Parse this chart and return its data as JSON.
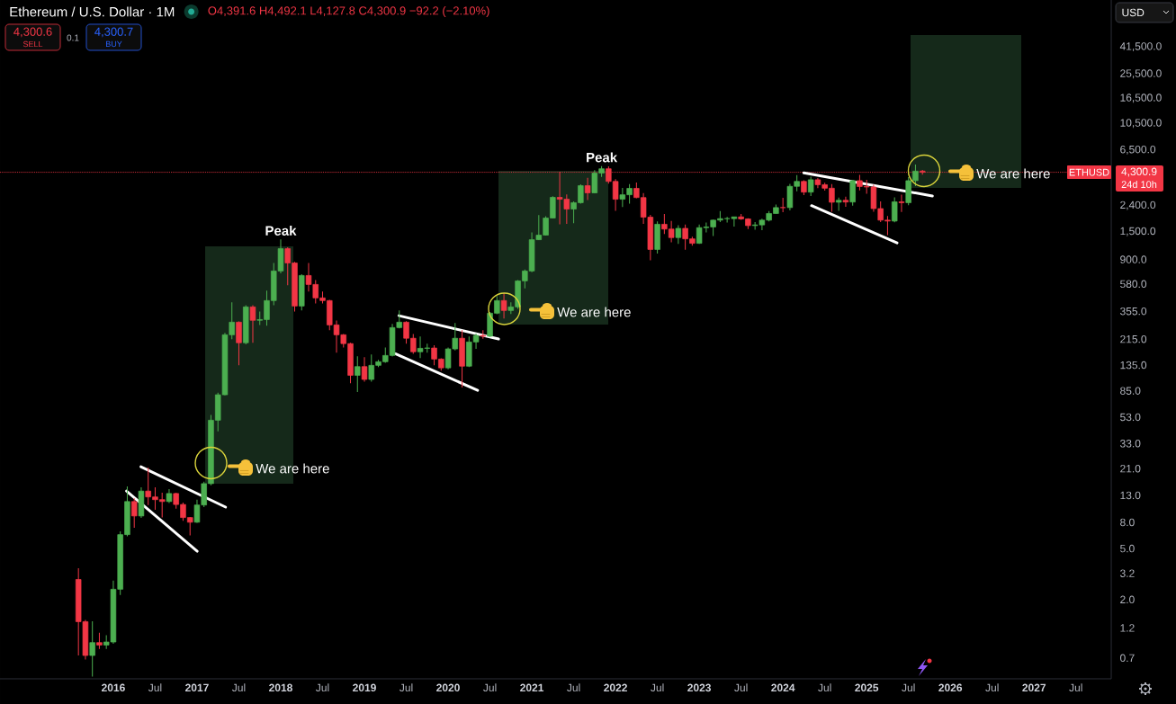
{
  "chart_data": {
    "type": "candlestick",
    "title": "Ethereum / U.S. Dollar · 1M",
    "subtitle": "O4,391.6 H4,492.1 L4,127.8 C4,300.9 −92.2 (−2.10%)",
    "x": [
      "2015-08",
      "2015-09",
      "2015-10",
      "2015-11",
      "2015-12",
      "2016-01",
      "2016-02",
      "2016-03",
      "2016-04",
      "2016-05",
      "2016-06",
      "2016-07",
      "2016-08",
      "2016-09",
      "2016-10",
      "2016-11",
      "2016-12",
      "2017-01",
      "2017-02",
      "2017-03",
      "2017-04",
      "2017-05",
      "2017-06",
      "2017-07",
      "2017-08",
      "2017-09",
      "2017-10",
      "2017-11",
      "2017-12",
      "2018-01",
      "2018-02",
      "2018-03",
      "2018-04",
      "2018-05",
      "2018-06",
      "2018-07",
      "2018-08",
      "2018-09",
      "2018-10",
      "2018-11",
      "2018-12",
      "2019-01",
      "2019-02",
      "2019-03",
      "2019-04",
      "2019-05",
      "2019-06",
      "2019-07",
      "2019-08",
      "2019-09",
      "2019-10",
      "2019-11",
      "2019-12",
      "2020-01",
      "2020-02",
      "2020-03",
      "2020-04",
      "2020-05",
      "2020-06",
      "2020-07",
      "2020-08",
      "2020-09",
      "2020-10",
      "2020-11",
      "2020-12",
      "2021-01",
      "2021-02",
      "2021-03",
      "2021-04",
      "2021-05",
      "2021-06",
      "2021-07",
      "2021-08",
      "2021-09",
      "2021-10",
      "2021-11",
      "2021-12",
      "2022-01",
      "2022-02",
      "2022-03",
      "2022-04",
      "2022-05",
      "2022-06",
      "2022-07",
      "2022-08",
      "2022-09",
      "2022-10",
      "2022-11",
      "2022-12",
      "2023-01",
      "2023-02",
      "2023-03",
      "2023-04",
      "2023-05",
      "2023-06",
      "2023-07",
      "2023-08",
      "2023-09",
      "2023-10",
      "2023-11",
      "2023-12",
      "2024-01",
      "2024-02",
      "2024-03",
      "2024-04",
      "2024-05",
      "2024-06",
      "2024-07",
      "2024-08",
      "2024-09",
      "2024-10",
      "2024-11",
      "2024-12",
      "2025-01",
      "2025-02",
      "2025-03",
      "2025-04",
      "2025-05",
      "2025-06",
      "2025-07",
      "2025-08",
      "2025-09"
    ],
    "ohlc": [
      [
        2.86,
        3.5,
        0.73,
        1.34
      ],
      [
        1.34,
        1.38,
        0.68,
        0.73
      ],
      [
        0.73,
        1.35,
        0.5,
        0.92
      ],
      [
        0.92,
        1.1,
        0.82,
        0.88
      ],
      [
        0.88,
        1.05,
        0.82,
        0.93
      ],
      [
        0.93,
        2.8,
        0.9,
        2.4
      ],
      [
        2.4,
        6.8,
        2.16,
        6.4
      ],
      [
        6.4,
        15.2,
        6.2,
        11.6
      ],
      [
        11.6,
        12.3,
        7.25,
        8.95
      ],
      [
        8.95,
        15,
        8.66,
        14
      ],
      [
        14,
        21.4,
        10.9,
        12.6
      ],
      [
        12.6,
        15,
        10,
        12
      ],
      [
        12,
        13.6,
        8.7,
        11.6
      ],
      [
        11.6,
        14.5,
        11.3,
        13.4
      ],
      [
        13.4,
        13.6,
        10.2,
        11
      ],
      [
        11,
        11.4,
        8.2,
        8.7
      ],
      [
        8.7,
        8.8,
        6.3,
        8
      ],
      [
        8,
        12,
        7.9,
        10.9
      ],
      [
        10.9,
        16.6,
        10.5,
        16
      ],
      [
        16,
        55,
        15.5,
        50
      ],
      [
        50,
        82,
        41,
        79
      ],
      [
        79,
        240,
        78,
        232
      ],
      [
        232,
        415,
        214,
        291
      ],
      [
        291,
        295,
        134,
        201
      ],
      [
        201,
        395,
        195,
        383
      ],
      [
        383,
        395,
        201,
        301
      ],
      [
        301,
        353,
        277,
        305
      ],
      [
        305,
        512,
        273,
        429
      ],
      [
        429,
        843,
        395,
        730
      ],
      [
        730,
        1290,
        700,
        1090
      ],
      [
        1090,
        1120,
        564,
        843
      ],
      [
        843,
        860,
        353,
        389
      ],
      [
        389,
        690,
        360,
        673
      ],
      [
        673,
        843,
        504,
        573
      ],
      [
        573,
        620,
        408,
        450
      ],
      [
        450,
        504,
        408,
        429
      ],
      [
        429,
        435,
        252,
        277
      ],
      [
        277,
        300,
        168,
        232
      ],
      [
        232,
        235,
        185,
        198
      ],
      [
        198,
        201,
        97,
        112
      ],
      [
        112,
        158,
        83,
        131
      ],
      [
        131,
        155,
        100,
        104
      ],
      [
        104,
        163,
        100,
        134
      ],
      [
        134,
        148,
        130,
        143
      ],
      [
        143,
        185,
        140,
        160
      ],
      [
        160,
        282,
        157,
        264
      ],
      [
        264,
        359,
        260,
        291
      ],
      [
        291,
        296,
        198,
        218
      ],
      [
        218,
        235,
        165,
        171
      ],
      [
        171,
        225,
        153,
        182
      ],
      [
        182,
        198,
        168,
        183
      ],
      [
        183,
        192,
        134,
        150
      ],
      [
        150,
        152,
        122,
        128
      ],
      [
        128,
        185,
        125,
        180
      ],
      [
        180,
        287,
        175,
        218
      ],
      [
        218,
        252,
        90,
        132
      ],
      [
        132,
        225,
        130,
        204
      ],
      [
        204,
        237,
        180,
        229
      ],
      [
        229,
        252,
        216,
        226
      ],
      [
        226,
        350,
        223,
        342
      ],
      [
        342,
        465,
        335,
        429
      ],
      [
        429,
        490,
        311,
        359
      ],
      [
        359,
        415,
        337,
        383
      ],
      [
        383,
        620,
        370,
        611
      ],
      [
        611,
        750,
        535,
        730
      ],
      [
        730,
        1460,
        715,
        1280
      ],
      [
        1280,
        1990,
        1270,
        1390
      ],
      [
        1390,
        1950,
        1380,
        1890
      ],
      [
        1890,
        2800,
        1880,
        2740
      ],
      [
        2740,
        4350,
        1690,
        2650
      ],
      [
        2650,
        2890,
        1700,
        2220
      ],
      [
        2220,
        2550,
        1720,
        2490
      ],
      [
        2490,
        3470,
        2450,
        3380
      ],
      [
        3380,
        3900,
        2610,
        2970
      ],
      [
        2970,
        4460,
        2960,
        4240
      ],
      [
        4240,
        4810,
        3960,
        4580
      ],
      [
        4580,
        4780,
        3500,
        3650
      ],
      [
        3650,
        3800,
        2150,
        2650
      ],
      [
        2650,
        3250,
        2300,
        2870
      ],
      [
        2870,
        3480,
        2450,
        3220
      ],
      [
        3220,
        3580,
        2700,
        2730
      ],
      [
        2730,
        2960,
        1700,
        1920
      ],
      [
        1920,
        2000,
        885,
        1075
      ],
      [
        1075,
        1780,
        1000,
        1690
      ],
      [
        1690,
        2030,
        1420,
        1550
      ],
      [
        1550,
        1790,
        1220,
        1330
      ],
      [
        1330,
        1660,
        1190,
        1570
      ],
      [
        1570,
        1680,
        1070,
        1300
      ],
      [
        1300,
        1350,
        1150,
        1200
      ],
      [
        1200,
        1680,
        1190,
        1590
      ],
      [
        1590,
        1740,
        1460,
        1610
      ],
      [
        1610,
        1840,
        1370,
        1820
      ],
      [
        1820,
        2140,
        1760,
        1870
      ],
      [
        1870,
        1930,
        1740,
        1870
      ],
      [
        1870,
        1930,
        1620,
        1930
      ],
      [
        1930,
        2030,
        1830,
        1860
      ],
      [
        1860,
        1880,
        1550,
        1650
      ],
      [
        1650,
        1760,
        1530,
        1670
      ],
      [
        1670,
        1870,
        1520,
        1820
      ],
      [
        1820,
        2140,
        1780,
        2050
      ],
      [
        2050,
        2410,
        2040,
        2280
      ],
      [
        2280,
        2720,
        2100,
        2280
      ],
      [
        2280,
        3490,
        2170,
        3340
      ],
      [
        3340,
        4090,
        3050,
        3650
      ],
      [
        3650,
        3730,
        2850,
        3010
      ],
      [
        3010,
        3980,
        2810,
        3760
      ],
      [
        3760,
        3880,
        3240,
        3440
      ],
      [
        3440,
        3560,
        3090,
        3230
      ],
      [
        3230,
        3480,
        2120,
        2510
      ],
      [
        2510,
        2730,
        2150,
        2600
      ],
      [
        2600,
        2770,
        2310,
        2520
      ],
      [
        2520,
        3750,
        2360,
        3700
      ],
      [
        3700,
        4110,
        3100,
        3330
      ],
      [
        3330,
        3750,
        2920,
        3300
      ],
      [
        3300,
        3440,
        2120,
        2240
      ],
      [
        2240,
        2550,
        1760,
        1820
      ],
      [
        1820,
        1960,
        1390,
        1790
      ],
      [
        1790,
        2740,
        1750,
        2530
      ],
      [
        2530,
        2880,
        2110,
        2490
      ],
      [
        2490,
        3940,
        2380,
        3700
      ],
      [
        3700,
        4950,
        3350,
        4390
      ],
      [
        4391.6,
        4492.1,
        4127.8,
        4300.9
      ]
    ],
    "colors": [
      "#f23645",
      "#f23645",
      "#4caf50",
      "#f23645",
      "#4caf50",
      "#4caf50",
      "#4caf50",
      "#4caf50",
      "#f23645",
      "#4caf50",
      "#f23645",
      "#f23645",
      "#f23645",
      "#4caf50",
      "#f23645",
      "#f23645",
      "#f23645",
      "#4caf50",
      "#4caf50",
      "#4caf50",
      "#4caf50",
      "#4caf50",
      "#4caf50",
      "#f23645",
      "#4caf50",
      "#f23645",
      "#4caf50",
      "#4caf50",
      "#4caf50",
      "#4caf50",
      "#f23645",
      "#f23645",
      "#4caf50",
      "#f23645",
      "#f23645",
      "#f23645",
      "#f23645",
      "#f23645",
      "#f23645",
      "#f23645",
      "#4caf50",
      "#f23645",
      "#4caf50",
      "#4caf50",
      "#4caf50",
      "#4caf50",
      "#4caf50",
      "#f23645",
      "#f23645",
      "#4caf50",
      "#4caf50",
      "#f23645",
      "#f23645",
      "#4caf50",
      "#4caf50",
      "#f23645",
      "#4caf50",
      "#4caf50",
      "#f23645",
      "#4caf50",
      "#4caf50",
      "#f23645",
      "#4caf50",
      "#4caf50",
      "#4caf50",
      "#4caf50",
      "#4caf50",
      "#4caf50",
      "#4caf50",
      "#f23645",
      "#f23645",
      "#4caf50",
      "#4caf50",
      "#f23645",
      "#4caf50",
      "#4caf50",
      "#f23645",
      "#f23645",
      "#4caf50",
      "#4caf50",
      "#f23645",
      "#f23645",
      "#f23645",
      "#4caf50",
      "#f23645",
      "#f23645",
      "#4caf50",
      "#f23645",
      "#f23645",
      "#4caf50",
      "#4caf50",
      "#4caf50",
      "#4caf50",
      "#4caf50",
      "#4caf50",
      "#f23645",
      "#f23645",
      "#4caf50",
      "#4caf50",
      "#4caf50",
      "#4caf50",
      "#f23645",
      "#4caf50",
      "#4caf50",
      "#f23645",
      "#4caf50",
      "#f23645",
      "#f23645",
      "#f23645",
      "#4caf50",
      "#f23645",
      "#4caf50",
      "#f23645",
      "#f23645",
      "#f23645",
      "#f23645",
      "#f23645",
      "#4caf50",
      "#f23645",
      "#4caf50",
      "#4caf50",
      "#f23645"
    ],
    "series": [
      {
        "type": "line",
        "color": "#ffffff",
        "x": [
          "2016-04-30",
          "2017-05-04"
        ],
        "values": [
          21.7,
          10.5
        ]
      },
      {
        "type": "line",
        "color": "#ffffff",
        "x": [
          "2016-02-28",
          "2017-01-02"
        ],
        "values": [
          14.0,
          4.75
        ]
      },
      {
        "type": "line",
        "color": "#ffffff",
        "x": [
          "2019-05-30",
          "2020-08-08"
        ],
        "values": [
          327,
          215
        ]
      },
      {
        "type": "line",
        "color": "#ffffff",
        "x": [
          "2019-05-14",
          "2020-05-08"
        ],
        "values": [
          165,
          85.5
        ]
      },
      {
        "type": "line",
        "color": "#ffffff",
        "x": [
          "2024-04-01",
          "2025-10-14"
        ],
        "values": [
          4250,
          2810
        ]
      },
      {
        "type": "line",
        "color": "#ffffff",
        "x": [
          "2024-05-04",
          "2025-05-12"
        ],
        "values": [
          2360,
          1210
        ]
      }
    ],
    "xlim": [
      "2014-08-24",
      "2027-12-03"
    ],
    "xticks": [
      {
        "value": "2016-01",
        "label": "2016"
      },
      {
        "value": "2016-07",
        "label": "Jul"
      },
      {
        "value": "2017-01",
        "label": "2017"
      },
      {
        "value": "2017-07",
        "label": "Jul"
      },
      {
        "value": "2018-01",
        "label": "2018"
      },
      {
        "value": "2018-07",
        "label": "Jul"
      },
      {
        "value": "2019-01",
        "label": "2019"
      },
      {
        "value": "2019-07",
        "label": "Jul"
      },
      {
        "value": "2020-01",
        "label": "2020"
      },
      {
        "value": "2020-07",
        "label": "Jul"
      },
      {
        "value": "2021-01",
        "label": "2021"
      },
      {
        "value": "2021-07",
        "label": "Jul"
      },
      {
        "value": "2022-01",
        "label": "2022"
      },
      {
        "value": "2022-07",
        "label": "Jul"
      },
      {
        "value": "2023-01",
        "label": "2023"
      },
      {
        "value": "2023-07",
        "label": "Jul"
      },
      {
        "value": "2024-01",
        "label": "2024"
      },
      {
        "value": "2024-07",
        "label": "Jul"
      },
      {
        "value": "2025-01",
        "label": "2025"
      },
      {
        "value": "2025-07",
        "label": "Jul"
      },
      {
        "value": "2026-01",
        "label": "2026"
      },
      {
        "value": "2026-07",
        "label": "Jul"
      },
      {
        "value": "2027-01",
        "label": "2027"
      },
      {
        "value": "2027-07",
        "label": "Jul"
      }
    ],
    "ylim": [
      0.48,
      95000
    ],
    "log": true,
    "yticks": [
      0.7,
      1.2,
      {
        "value": 2,
        "label": "2.0"
      },
      3.2,
      {
        "value": 5,
        "label": "5.0"
      },
      {
        "value": 8,
        "label": "8.0"
      },
      {
        "value": 13,
        "label": "13.0"
      },
      {
        "value": 21,
        "label": "21.0"
      },
      {
        "value": 33,
        "label": "33.0"
      },
      {
        "value": 53,
        "label": "53.0"
      },
      {
        "value": 85,
        "label": "85.0"
      },
      {
        "value": 135,
        "label": "135.0"
      },
      {
        "value": 215,
        "label": "215.0"
      },
      {
        "value": 355,
        "label": "355.0"
      },
      {
        "value": 580,
        "label": "580.0"
      },
      {
        "value": 900,
        "label": "900.0"
      },
      {
        "value": 1500,
        "label": "1,500.0"
      },
      {
        "value": 2400,
        "label": "2,400.0"
      },
      {
        "value": 6500,
        "label": "6,500.0"
      },
      {
        "value": 10500,
        "label": "10,500.0"
      },
      {
        "value": 16500,
        "label": "16,500.0"
      },
      {
        "value": 25500,
        "label": "25,500.0"
      },
      {
        "value": 41500,
        "label": "41,500.0"
      }
    ],
    "ref_lines": [
      {
        "axis": "y",
        "value": 4300.9,
        "label": "ETHUSD",
        "color": "#f23645",
        "line_style": "dotted"
      }
    ],
    "annotations": [
      {
        "text": "Peak",
        "x": "2018-01",
        "y": 1290
      },
      {
        "text": "Peak",
        "x": "2021-11",
        "y": 4810
      },
      "We are here",
      "We are here",
      "We are here",
      "4,300.6",
      "SELL",
      "0.1",
      "4,300.7",
      "BUY",
      "USD",
      "4,300.9",
      "24d 10h"
    ]
  }
}
